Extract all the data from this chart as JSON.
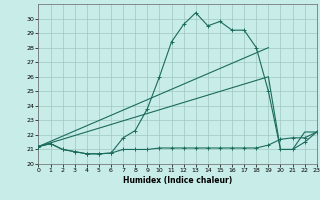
{
  "xlabel": "Humidex (Indice chaleur)",
  "bg_color": "#c8ece8",
  "grid_color": "#a0c8c0",
  "line_color": "#1a6b5a",
  "xlim": [
    0,
    23
  ],
  "ylim": [
    20,
    31
  ],
  "xticks": [
    0,
    1,
    2,
    3,
    4,
    5,
    6,
    7,
    8,
    9,
    10,
    11,
    12,
    13,
    14,
    15,
    16,
    17,
    18,
    19,
    20,
    21,
    22,
    23
  ],
  "yticks": [
    20,
    21,
    22,
    23,
    24,
    25,
    26,
    27,
    28,
    29,
    30
  ],
  "series1_x": [
    0,
    1,
    2,
    3,
    4,
    5,
    6,
    7,
    8,
    9,
    10,
    11,
    12,
    13,
    14,
    15,
    16,
    17,
    18,
    19,
    20,
    21,
    22,
    23
  ],
  "series1_y": [
    21.2,
    21.4,
    21.0,
    20.85,
    20.7,
    20.7,
    20.75,
    21.0,
    21.0,
    21.0,
    21.1,
    21.1,
    21.1,
    21.1,
    21.1,
    21.1,
    21.1,
    21.1,
    21.1,
    21.3,
    21.7,
    21.8,
    21.8,
    22.2
  ],
  "series2_x": [
    0,
    1,
    2,
    3,
    4,
    5,
    6,
    7,
    8,
    9,
    10,
    11,
    12,
    13,
    14,
    15,
    16,
    17,
    18,
    19,
    20,
    21,
    22,
    23
  ],
  "series2_y": [
    21.2,
    21.4,
    21.0,
    20.85,
    20.7,
    20.7,
    20.75,
    21.8,
    22.3,
    23.8,
    26.0,
    28.4,
    29.6,
    30.4,
    29.5,
    29.8,
    29.2,
    29.2,
    28.0,
    25.0,
    21.0,
    21.0,
    21.5,
    22.2
  ],
  "series3_x": [
    0,
    19
  ],
  "series3_y": [
    21.2,
    28.0
  ],
  "series4_x": [
    0,
    19,
    20,
    21,
    22,
    23
  ],
  "series4_y": [
    21.2,
    26.0,
    21.0,
    21.0,
    22.2,
    22.2
  ]
}
